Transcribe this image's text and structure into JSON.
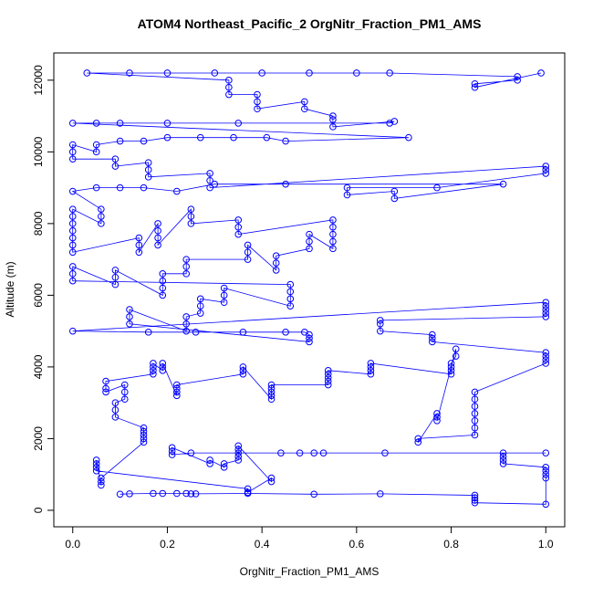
{
  "chart_data": {
    "type": "scatter-line",
    "title": "ATOM4 Northeast_Pacific_2 OrgNitr_Fraction_PM1_AMS",
    "xlabel": "OrgNitr_Fraction_PM1_AMS",
    "ylabel": "Altitude (m)",
    "color": "#0000ff",
    "xlim": [
      -0.04,
      1.04
    ],
    "ylim": [
      -460,
      12760
    ],
    "xticks": [
      {
        "value": 0,
        "label": "0.0"
      },
      0.2,
      0.4,
      0.6,
      0.8,
      {
        "value": 1,
        "label": "1.0"
      }
    ],
    "yticks": [
      0,
      2000,
      4000,
      6000,
      8000,
      10000,
      12000
    ],
    "x": [
      0.1,
      0.12,
      0.17,
      0.19,
      0.22,
      0.24,
      0.25,
      0.26,
      0.37,
      0.51,
      0.65,
      0.85,
      0.85,
      0.85,
      0.85,
      1.0,
      1.0,
      1.0,
      1.0,
      1.0,
      0.91,
      0.91,
      0.91,
      0.91,
      1.0,
      0.66,
      0.53,
      0.51,
      0.48,
      0.44,
      0.25,
      0.21,
      0.21,
      0.21,
      0.29,
      0.29,
      0.32,
      0.32,
      0.35,
      0.35,
      0.35,
      0.35,
      0.35,
      0.42,
      0.42,
      0.37,
      0.37,
      0.05,
      0.05,
      0.05,
      0.05,
      0.06,
      0.06,
      0.06,
      0.15,
      0.15,
      0.15,
      0.15,
      0.15,
      0.09,
      0.09,
      0.09,
      0.11,
      0.11,
      0.11,
      0.07,
      0.07,
      0.07,
      0.17,
      0.17,
      0.17,
      0.17,
      0.19,
      0.19,
      0.19,
      0.22,
      0.22,
      0.22,
      0.22,
      0.36,
      0.36,
      0.36,
      0.42,
      0.42,
      0.42,
      0.42,
      0.42,
      0.54,
      0.54,
      0.54,
      0.54,
      0.54,
      0.63,
      0.63,
      0.63,
      0.63,
      0.8,
      0.8,
      0.8,
      0.8,
      0.81,
      0.81,
      0.77,
      0.77,
      0.77,
      0.73,
      0.73,
      0.85,
      0.85,
      0.85,
      0.85,
      0.85,
      0.85,
      0.85,
      1.0,
      1.0,
      1.0,
      1.0,
      0.76,
      0.76,
      0.76,
      0.65,
      0.65,
      0.65,
      1.0,
      1.0,
      1.0,
      1.0,
      1.0,
      0.0,
      0.16,
      0.26,
      0.36,
      0.45,
      0.49,
      0.5,
      0.5,
      0.5,
      0.12,
      0.12,
      0.12,
      0.24,
      0.24,
      0.24,
      0.27,
      0.27,
      0.27,
      0.32,
      0.32,
      0.32,
      0.46,
      0.46,
      0.46,
      0.46,
      0.0,
      0.0,
      0.0,
      0.09,
      0.09,
      0.09,
      0.19,
      0.19,
      0.19,
      0.19,
      0.24,
      0.24,
      0.24,
      0.37,
      0.37,
      0.37,
      0.43,
      0.43,
      0.43,
      0.5,
      0.5,
      0.5,
      0.55,
      0.55,
      0.55,
      0.55,
      0.55,
      0.35,
      0.35,
      0.35,
      0.25,
      0.25,
      0.25,
      0.18,
      0.18,
      0.18,
      0.18,
      0.14,
      0.14,
      0.14,
      0.0,
      0.0,
      0.0,
      0.0,
      0.0,
      0.0,
      0.0,
      0.06,
      0.06,
      0.06,
      0.0,
      0.05,
      0.1,
      0.15,
      0.22,
      0.3,
      0.45,
      0.91,
      0.68,
      0.68,
      0.58,
      0.58,
      0.77,
      1.0,
      1.0,
      1.0,
      0.29,
      0.29,
      0.29,
      0.16,
      0.16,
      0.16,
      0.09,
      0.09,
      0.0,
      0.0,
      0.0,
      0.05,
      0.05,
      0.1,
      0.15,
      0.2,
      0.27,
      0.34,
      0.41,
      0.45,
      0.71,
      0.0,
      0.05,
      0.1,
      0.2,
      0.35,
      0.67,
      0.68,
      0.55,
      0.55,
      0.55,
      0.49,
      0.49,
      0.39,
      0.39,
      0.39,
      0.33,
      0.33,
      0.33,
      0.03,
      0.12,
      0.2,
      0.3,
      0.4,
      0.5,
      0.6,
      0.67,
      0.94,
      0.94,
      0.85,
      0.85,
      0.99
    ],
    "y": [
      450,
      460,
      470,
      470,
      470,
      470,
      460,
      460,
      470,
      450,
      460,
      420,
      350,
      280,
      210,
      170,
      900,
      1000,
      1100,
      1200,
      1300,
      1400,
      1500,
      1600,
      1600,
      1600,
      1600,
      1600,
      1600,
      1600,
      1600,
      1550,
      1650,
      1750,
      1300,
      1400,
      1200,
      1300,
      1400,
      1500,
      1600,
      1700,
      1800,
      800,
      900,
      500,
      600,
      1100,
      1200,
      1300,
      1400,
      700,
      800,
      900,
      1900,
      2000,
      2100,
      2200,
      2300,
      2600,
      2800,
      3000,
      3100,
      3300,
      3500,
      3300,
      3400,
      3600,
      3800,
      3900,
      4000,
      4100,
      3900,
      4000,
      4100,
      3200,
      3300,
      3400,
      3500,
      3800,
      3900,
      4000,
      3100,
      3200,
      3300,
      3400,
      3500,
      3500,
      3600,
      3700,
      3800,
      3900,
      3800,
      3900,
      4000,
      4100,
      3800,
      3900,
      4000,
      4100,
      4300,
      4500,
      2500,
      2600,
      2700,
      1900,
      2000,
      2100,
      2300,
      2500,
      2700,
      2900,
      3100,
      3300,
      4100,
      4200,
      4300,
      4400,
      4700,
      4800,
      4900,
      5000,
      5200,
      5300,
      5400,
      5500,
      5600,
      5700,
      5800,
      5000,
      4970,
      4970,
      4970,
      4970,
      4970,
      4900,
      4800,
      4700,
      5200,
      5400,
      5600,
      5000,
      5200,
      5400,
      5500,
      5700,
      5900,
      5800,
      6000,
      6200,
      5700,
      5900,
      6100,
      6300,
      6400,
      6600,
      6800,
      6300,
      6500,
      6700,
      6000,
      6200,
      6400,
      6600,
      6600,
      6800,
      7000,
      7000,
      7200,
      7400,
      6700,
      6900,
      7100,
      7300,
      7500,
      7700,
      7300,
      7500,
      7700,
      7900,
      8100,
      7700,
      7900,
      8100,
      8000,
      8200,
      8400,
      7400,
      7600,
      7800,
      8000,
      7200,
      7400,
      7600,
      7200,
      7400,
      7600,
      7800,
      8000,
      8200,
      8400,
      8000,
      8200,
      8400,
      8900,
      9000,
      9000,
      9000,
      8900,
      9100,
      9100,
      9100,
      8700,
      8900,
      8800,
      9000,
      9000,
      9400,
      9500,
      9600,
      9000,
      9200,
      9400,
      9300,
      9500,
      9700,
      9600,
      9800,
      9800,
      10000,
      10200,
      10000,
      10200,
      10300,
      10300,
      10400,
      10400,
      10400,
      10400,
      10300,
      10400,
      10800,
      10800,
      10800,
      10800,
      10800,
      10800,
      10850,
      10700,
      10900,
      11000,
      11200,
      11400,
      11200,
      11400,
      11600,
      11600,
      11800,
      12000,
      12200,
      12200,
      12200,
      12200,
      12200,
      12200,
      12200,
      12200,
      12100,
      12000,
      11900,
      11800,
      12200
    ]
  }
}
